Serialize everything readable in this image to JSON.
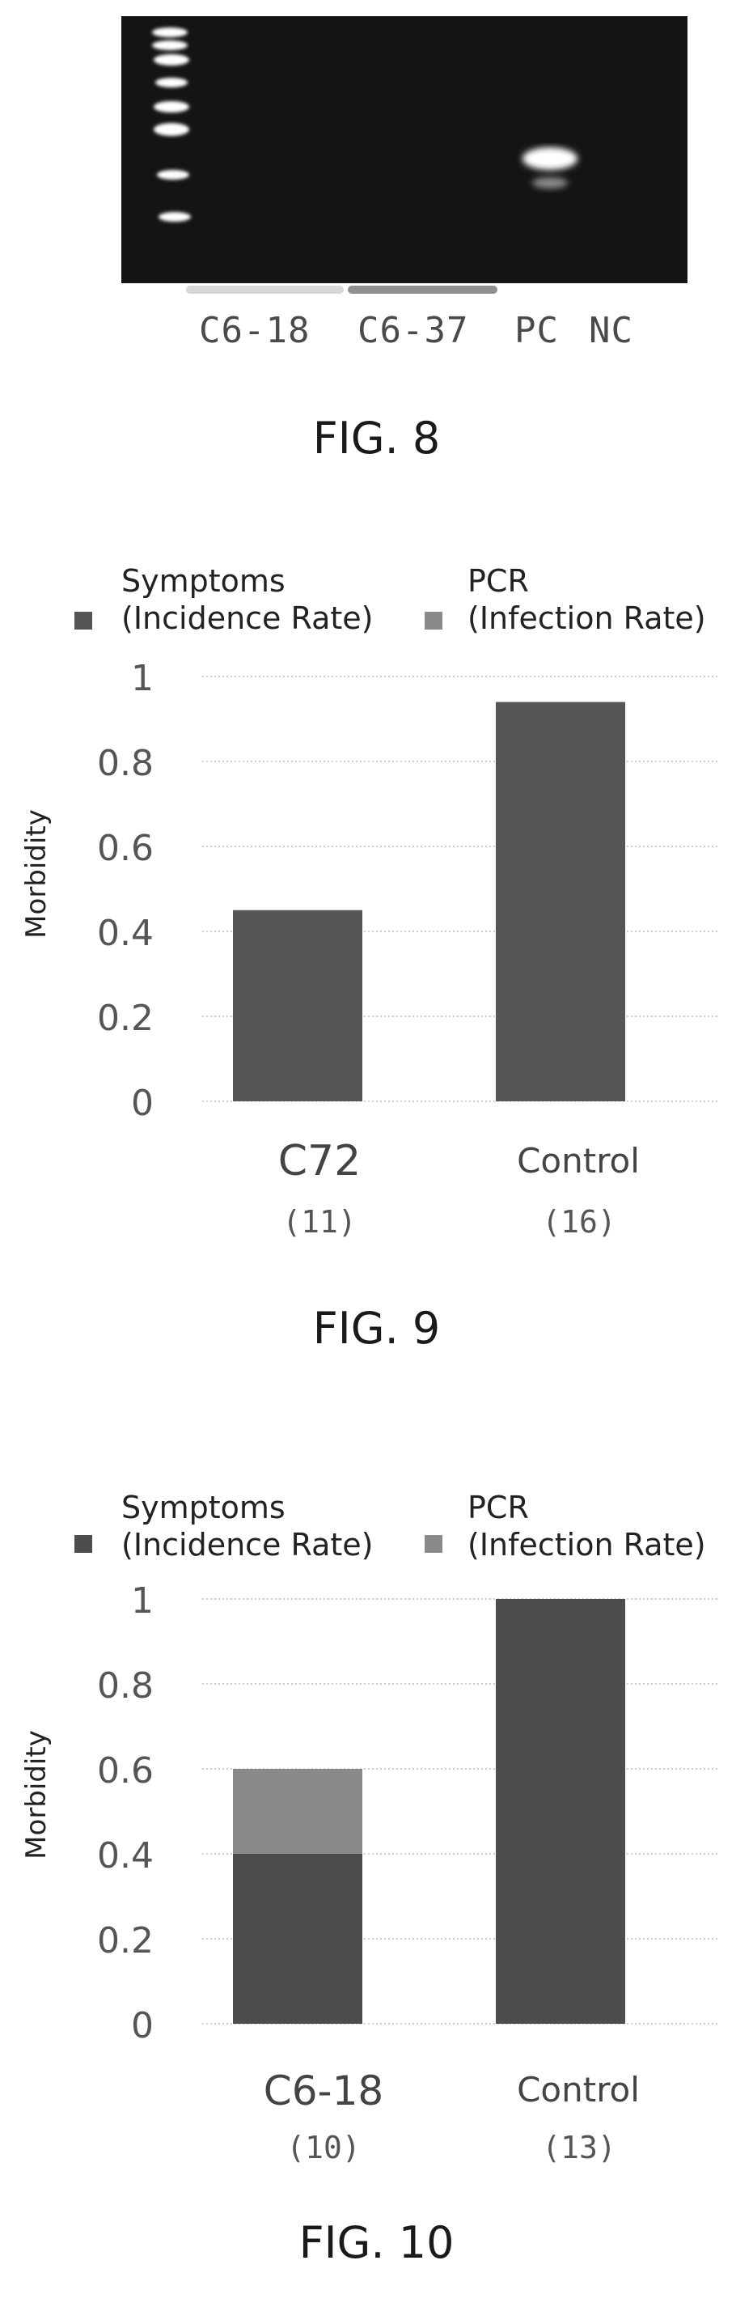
{
  "fig8": {
    "lanes": [
      "C6-18",
      "C6-37",
      "PC",
      "NC"
    ],
    "caption": "FIG. 8",
    "colors": {
      "gel_bg": "#141414",
      "band": "#ffffff",
      "c6_18_bar": "#d7d7d7",
      "c6_37_bar": "#8f8f8f"
    }
  },
  "fig9": {
    "legend": [
      {
        "label": "Symptoms\n(Incidence Rate)",
        "color": "#555555"
      },
      {
        "label": "PCR\n(Infection Rate)",
        "color": "#8a8a8a"
      }
    ],
    "ylabel": "Morbidity",
    "ticks": [
      "0",
      "0.2",
      "0.4",
      "0.6",
      "0.8",
      "1"
    ],
    "categories": [
      "C72",
      "Control"
    ],
    "n_labels": [
      "(11)",
      "(16)"
    ],
    "caption": "FIG. 9"
  },
  "fig10": {
    "legend": [
      {
        "label": "Symptoms\n(Incidence Rate)",
        "color": "#4d4d4d"
      },
      {
        "label": "PCR\n(Infection Rate)",
        "color": "#8a8a8a"
      }
    ],
    "ylabel": "Morbidity",
    "ticks": [
      "0",
      "0.2",
      "0.4",
      "0.6",
      "0.8",
      "1"
    ],
    "categories": [
      "C6-18",
      "Control"
    ],
    "n_labels": [
      "(10)",
      "(13)"
    ],
    "caption": "FIG. 10"
  },
  "chart_data": [
    {
      "type": "bar",
      "stacked": true,
      "categories": [
        "C72",
        "Control"
      ],
      "series": [
        {
          "name": "Symptoms (Incidence Rate)",
          "values": [
            0.45,
            0.94
          ]
        },
        {
          "name": "PCR (Infection Rate)",
          "values": [
            0,
            0
          ]
        }
      ],
      "title": "",
      "xlabel": "",
      "ylabel": "Morbidity",
      "ylim": [
        0,
        1
      ],
      "grid": true,
      "legend": "top"
    },
    {
      "type": "bar",
      "stacked": true,
      "categories": [
        "C6-18",
        "Control"
      ],
      "series": [
        {
          "name": "Symptoms (Incidence Rate)",
          "values": [
            0.4,
            1.0
          ]
        },
        {
          "name": "PCR (Infection Rate)",
          "values": [
            0.2,
            0
          ]
        }
      ],
      "title": "",
      "xlabel": "",
      "ylabel": "Morbidity",
      "ylim": [
        0,
        1
      ],
      "grid": true,
      "legend": "top"
    }
  ]
}
